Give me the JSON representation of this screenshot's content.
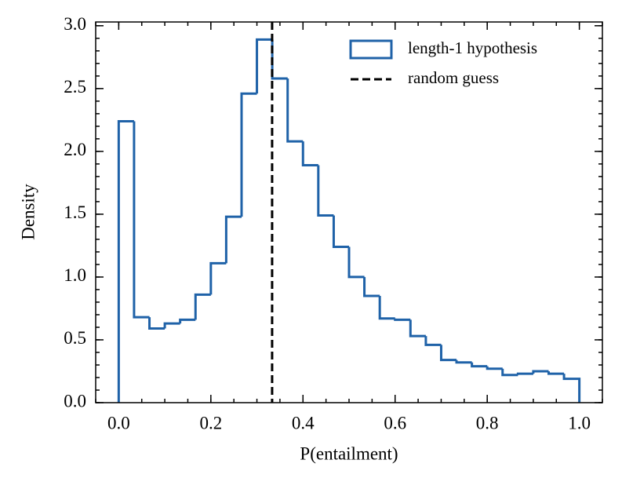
{
  "chart_data": {
    "type": "histogram",
    "xlabel": "P(entailment)",
    "ylabel": "Density",
    "bins": [
      0,
      0.0333,
      0.0667,
      0.1,
      0.1333,
      0.1667,
      0.2,
      0.2333,
      0.2667,
      0.3,
      0.3333,
      0.3667,
      0.4,
      0.4333,
      0.4667,
      0.5,
      0.5333,
      0.5667,
      0.6,
      0.6333,
      0.6667,
      0.7,
      0.7333,
      0.7667,
      0.8,
      0.8333,
      0.8667,
      0.9,
      0.9333,
      0.9667,
      1
    ],
    "series": [
      {
        "name": "length-1 hypothesis",
        "color": "#1f62a8",
        "values": [
          2.24,
          0.68,
          0.59,
          0.63,
          0.66,
          0.86,
          1.11,
          1.48,
          2.46,
          2.89,
          2.58,
          2.08,
          1.89,
          1.49,
          1.24,
          1.0,
          0.85,
          0.67,
          0.66,
          0.53,
          0.46,
          0.34,
          0.32,
          0.29,
          0.27,
          0.22,
          0.23,
          0.25,
          0.23,
          0.19
        ]
      }
    ],
    "reference_line": {
      "name": "random guess",
      "x": 0.333,
      "color": "#000000",
      "style": "dashed"
    },
    "xlim": [
      -0.05,
      1.05
    ],
    "ylim": [
      0,
      3.03
    ],
    "xticks": [
      {
        "value": 0,
        "label": "0.0"
      },
      0.2,
      0.4,
      0.6,
      0.8,
      {
        "value": 1,
        "label": "1.0"
      }
    ],
    "yticks": [
      {
        "value": 0,
        "label": "0.0"
      },
      0.5,
      {
        "value": 1,
        "label": "1.0"
      },
      1.5,
      {
        "value": 2,
        "label": "2.0"
      },
      2.5,
      {
        "value": 3,
        "label": "3.0"
      }
    ],
    "legend": "upper right",
    "grid": false
  }
}
